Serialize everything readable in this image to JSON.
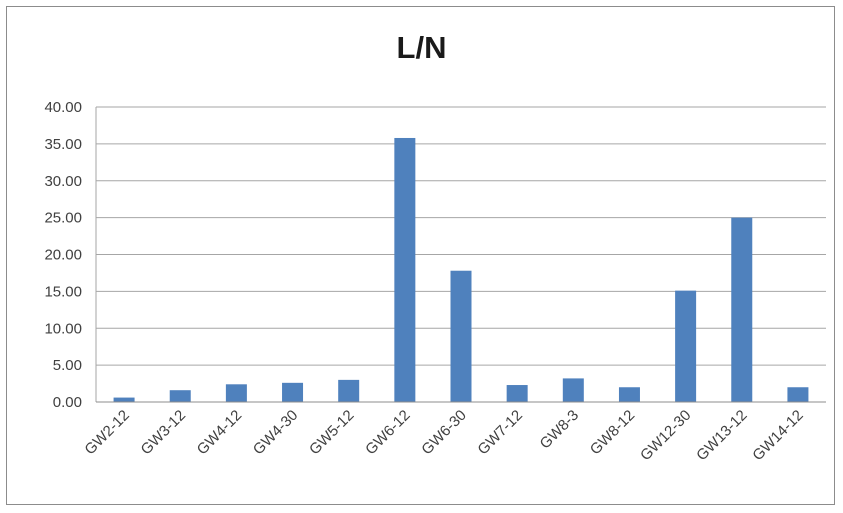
{
  "chart_data": {
    "type": "bar",
    "title": "L/N",
    "xlabel": "",
    "ylabel": "",
    "ylim": [
      0,
      40
    ],
    "yticks": [
      "0.00",
      "5.00",
      "10.00",
      "15.00",
      "20.00",
      "25.00",
      "30.00",
      "35.00",
      "40.00"
    ],
    "grid": true,
    "legend": "none",
    "bar_color": "#4f81bd",
    "grid_color": "#a6a6a6",
    "categories": [
      "GW2-12",
      "GW3-12",
      "GW4-12",
      "GW4-30",
      "GW5-12",
      "GW6-12",
      "GW6-30",
      "GW7-12",
      "GW8-3",
      "GW8-12",
      "GW12-30",
      "GW13-12",
      "GW14-12"
    ],
    "values": [
      0.6,
      1.6,
      2.4,
      2.6,
      3.0,
      35.8,
      17.8,
      2.3,
      3.2,
      2.0,
      15.1,
      25.0,
      2.0
    ]
  }
}
